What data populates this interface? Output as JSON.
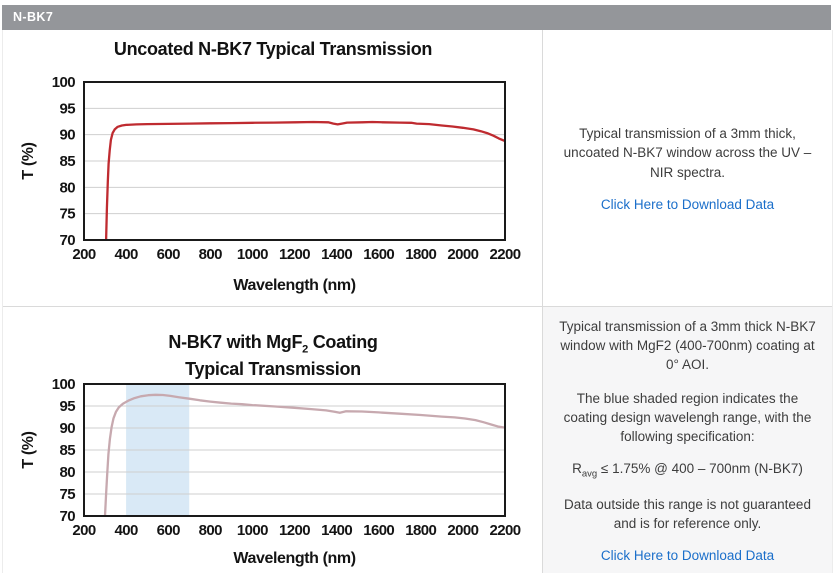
{
  "page": {
    "tab_label": "N-BK7"
  },
  "panels": {
    "top_right": {
      "description": "Typical transmission of a 3mm thick, uncoated N-BK7 window across the UV – NIR spectra.",
      "link_label": "Click Here to Download Data"
    },
    "bottom_right": {
      "description": "Typical transmission of a 3mm thick N-BK7 window with MgF2 (400-700nm) coating at 0° AOI.",
      "shaded_note": "The blue shaded region indicates the coating design wavelengh range, with the following specification:",
      "spec_pre": "R",
      "spec_sub": "avg",
      "spec_rest": " ≤ 1.75% @ 400 – 700nm (N-BK7)",
      "disclaimer": "Data outside this range is not guaranteed and is for reference only.",
      "link_label": "Click Here to Download Data"
    }
  },
  "chart_data": [
    {
      "type": "line",
      "title": "Uncoated N-BK7 Typical Transmission",
      "xlabel": "Wavelength (nm)",
      "ylabel": "T (%)",
      "xlim": [
        200,
        2200
      ],
      "ylim": [
        70,
        100
      ],
      "xticks": [
        200,
        400,
        600,
        800,
        1000,
        1200,
        1400,
        1600,
        1800,
        2000,
        2200
      ],
      "yticks": [
        70,
        75,
        80,
        85,
        90,
        95,
        100
      ],
      "grid": "horizontal-only",
      "legend": "none",
      "line_color": "#bf2b30",
      "grid_color": "#cfcfcf",
      "frame_color": "#1a1a1a",
      "series": [
        {
          "name": "Uncoated N-BK7 transmission",
          "points": [
            [
              300,
              62
            ],
            [
              305,
              70
            ],
            [
              309,
              76
            ],
            [
              313,
              81
            ],
            [
              317,
              84.5
            ],
            [
              322,
              87
            ],
            [
              328,
              89
            ],
            [
              336,
              90.3
            ],
            [
              346,
              91
            ],
            [
              360,
              91.5
            ],
            [
              380,
              91.75
            ],
            [
              400,
              91.85
            ],
            [
              450,
              91.95
            ],
            [
              500,
              92.0
            ],
            [
              600,
              92.05
            ],
            [
              700,
              92.1
            ],
            [
              800,
              92.15
            ],
            [
              900,
              92.2
            ],
            [
              1000,
              92.25
            ],
            [
              1100,
              92.3
            ],
            [
              1200,
              92.35
            ],
            [
              1290,
              92.4
            ],
            [
              1360,
              92.35
            ],
            [
              1385,
              92.1
            ],
            [
              1405,
              91.95
            ],
            [
              1425,
              92.1
            ],
            [
              1450,
              92.3
            ],
            [
              1520,
              92.35
            ],
            [
              1570,
              92.4
            ],
            [
              1620,
              92.35
            ],
            [
              1700,
              92.3
            ],
            [
              1755,
              92.25
            ],
            [
              1780,
              92.1
            ],
            [
              1840,
              92.0
            ],
            [
              1900,
              91.75
            ],
            [
              1950,
              91.55
            ],
            [
              2000,
              91.3
            ],
            [
              2050,
              91.0
            ],
            [
              2085,
              90.65
            ],
            [
              2115,
              90.3
            ],
            [
              2145,
              89.8
            ],
            [
              2170,
              89.3
            ],
            [
              2200,
              88.8
            ]
          ]
        }
      ]
    },
    {
      "type": "line",
      "title": "N-BK7 with MgF2 Coating Typical Transmission",
      "title_pre": "N-BK7 with MgF",
      "title_sub": "2",
      "title_post": " Coating",
      "title_line2": "Typical Transmission",
      "xlabel": "Wavelength (nm)",
      "ylabel": "T (%)",
      "xlim": [
        200,
        2200
      ],
      "ylim": [
        70,
        100
      ],
      "xticks": [
        200,
        400,
        600,
        800,
        1000,
        1200,
        1400,
        1600,
        1800,
        2000,
        2200
      ],
      "yticks": [
        70,
        75,
        80,
        85,
        90,
        95,
        100
      ],
      "grid": "horizontal-only",
      "legend": "none",
      "line_color": "#c7a9af",
      "grid_color": "#cfcfcf",
      "frame_color": "#1a1a1a",
      "shaded_region": {
        "x_start": 400,
        "x_end": 700,
        "color": "#d9e9f6",
        "meaning": "coating design wavelength range"
      },
      "series": [
        {
          "name": "N-BK7 with MgF2 coating transmission",
          "points": [
            [
              295,
              62
            ],
            [
              300,
              70
            ],
            [
              305,
              75
            ],
            [
              310,
              79.5
            ],
            [
              316,
              84
            ],
            [
              323,
              87.5
            ],
            [
              331,
              90.2
            ],
            [
              340,
              92.2
            ],
            [
              352,
              93.7
            ],
            [
              366,
              94.7
            ],
            [
              385,
              95.5
            ],
            [
              410,
              96.2
            ],
            [
              440,
              96.8
            ],
            [
              470,
              97.2
            ],
            [
              505,
              97.45
            ],
            [
              540,
              97.55
            ],
            [
              575,
              97.5
            ],
            [
              610,
              97.3
            ],
            [
              650,
              97.0
            ],
            [
              700,
              96.65
            ],
            [
              750,
              96.3
            ],
            [
              800,
              96.0
            ],
            [
              850,
              95.75
            ],
            [
              900,
              95.55
            ],
            [
              950,
              95.4
            ],
            [
              1000,
              95.2
            ],
            [
              1100,
              94.9
            ],
            [
              1200,
              94.6
            ],
            [
              1280,
              94.3
            ],
            [
              1350,
              94.0
            ],
            [
              1390,
              93.7
            ],
            [
              1415,
              93.45
            ],
            [
              1445,
              93.8
            ],
            [
              1520,
              93.75
            ],
            [
              1600,
              93.55
            ],
            [
              1700,
              93.25
            ],
            [
              1800,
              92.95
            ],
            [
              1900,
              92.6
            ],
            [
              1960,
              92.4
            ],
            [
              2010,
              92.15
            ],
            [
              2060,
              91.8
            ],
            [
              2100,
              91.3
            ],
            [
              2140,
              90.7
            ],
            [
              2170,
              90.3
            ],
            [
              2200,
              90.1
            ]
          ]
        }
      ]
    }
  ]
}
